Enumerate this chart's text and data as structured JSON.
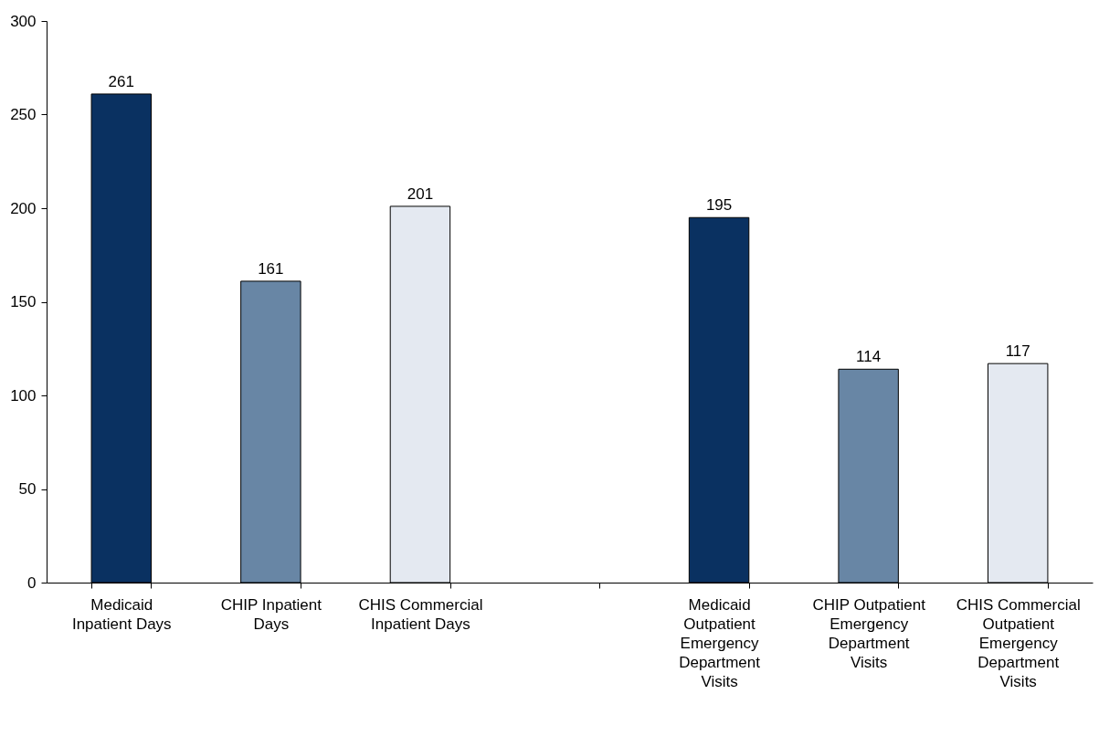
{
  "chart_data": {
    "type": "bar",
    "categories": [
      "Medicaid Inpatient Days",
      "CHIP Inpatient Days",
      "CHIS Commercial Inpatient Days",
      null,
      "Medicaid Outpatient Emergency Department Visits",
      "CHIP Outpatient Emergency Department Visits",
      "CHIS Commercial Outpatient Emergency Department Visits"
    ],
    "values": [
      261,
      161,
      201,
      null,
      195,
      114,
      117
    ],
    "colors": [
      "#0a3161",
      "#6886a5",
      "#e4e9f1",
      null,
      "#0a3161",
      "#6886a5",
      "#e4e9f1"
    ],
    "ylim": [
      0,
      300
    ],
    "yticks": [
      0,
      50,
      100,
      150,
      200,
      250,
      300
    ],
    "data_labels": true,
    "grid": false
  }
}
